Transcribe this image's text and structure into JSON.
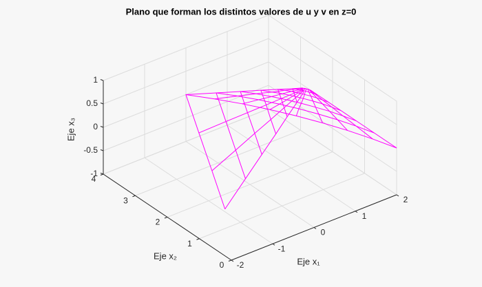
{
  "chart_data": {
    "type": "surface",
    "title": "Plano que forman los distintos valores de u y v en z=0",
    "xlabel": "Eje  x₁",
    "ylabel": "Eje  x₂",
    "zlabel": "Eje  x₃",
    "xlim": [
      -2,
      2
    ],
    "ylim": [
      0,
      4
    ],
    "zlim": [
      -1,
      1
    ],
    "xticks": [
      -2,
      -1,
      0,
      1,
      2
    ],
    "yticks": [
      0,
      1,
      2,
      3,
      4
    ],
    "zticks": [
      -1,
      -0.5,
      0,
      0.5,
      1
    ],
    "grid": true,
    "color": "#ff00ff",
    "x": [
      [
        -2,
        -1.33,
        -0.67,
        0,
        0.34,
        0.65,
        0.94,
        1.2,
        1.44,
        1.65,
        1.84,
        2
      ],
      [
        -1,
        -0.5,
        0,
        0.5,
        0.76,
        0.99,
        1.21,
        1.4,
        1.58,
        1.74,
        1.88,
        2
      ],
      [
        -0.2,
        0.17,
        0.53,
        0.9,
        1.09,
        1.26,
        1.42,
        1.56,
        1.69,
        1.81,
        1.91,
        2
      ],
      [
        0.48,
        0.73,
        0.99,
        1.24,
        1.37,
        1.49,
        1.6,
        1.7,
        1.79,
        1.87,
        1.94,
        2
      ],
      [
        1.04,
        1.2,
        1.36,
        1.52,
        1.6,
        1.68,
        1.75,
        1.81,
        1.87,
        1.92,
        1.96,
        2
      ],
      [
        1.52,
        1.6,
        1.68,
        1.76,
        1.8,
        1.84,
        1.87,
        1.9,
        1.93,
        1.96,
        1.98,
        2
      ],
      [
        1.84,
        1.87,
        1.89,
        1.92,
        1.93,
        1.95,
        1.96,
        1.97,
        1.98,
        1.99,
        1.99,
        2
      ]
    ],
    "y": [
      [
        0.2,
        1.47,
        2.73,
        4,
        3.54,
        3.08,
        2.59,
        2.1,
        1.59,
        1.08,
        0.54,
        0
      ],
      [
        0.85,
        1.8,
        2.75,
        3.7,
        3.36,
        3.01,
        2.64,
        2.28,
        1.89,
        1.51,
        1.11,
        0.7
      ],
      [
        1.37,
        2.07,
        2.76,
        3.46,
        3.21,
        2.95,
        2.68,
        2.41,
        2.13,
        1.85,
        1.56,
        1.26
      ],
      [
        1.81,
        2.29,
        2.77,
        3.26,
        3.08,
        2.91,
        2.72,
        2.53,
        2.34,
        2.15,
        1.94,
        1.74
      ],
      [
        2.18,
        2.48,
        2.78,
        3.09,
        2.98,
        2.87,
        2.75,
        2.63,
        2.51,
        2.39,
        2.26,
        2.13
      ],
      [
        2.49,
        2.64,
        2.79,
        2.94,
        2.89,
        2.83,
        2.77,
        2.72,
        2.65,
        2.59,
        2.53,
        2.46
      ],
      [
        2.7,
        2.75,
        2.8,
        2.85,
        2.83,
        2.81,
        2.79,
        2.77,
        2.75,
        2.73,
        2.71,
        2.69
      ]
    ],
    "z": [
      [
        0,
        0,
        0,
        0,
        0,
        0,
        0,
        0,
        0,
        0,
        0,
        0
      ],
      [
        0,
        0,
        0,
        0,
        0,
        0,
        0,
        0,
        0,
        0,
        0,
        0
      ],
      [
        0,
        0,
        0,
        0,
        0,
        0,
        0,
        0,
        0,
        0,
        0,
        0
      ],
      [
        0,
        0,
        0,
        0,
        0,
        0,
        0,
        0,
        0,
        0,
        0,
        0
      ],
      [
        0,
        0,
        0,
        0,
        0,
        0,
        0,
        0,
        0,
        0,
        0,
        0
      ],
      [
        0,
        0,
        0,
        0,
        0,
        0,
        0,
        0,
        0,
        0,
        0,
        0
      ],
      [
        0,
        0,
        0,
        0,
        0,
        0,
        0,
        0,
        0,
        0,
        0,
        0
      ]
    ]
  }
}
